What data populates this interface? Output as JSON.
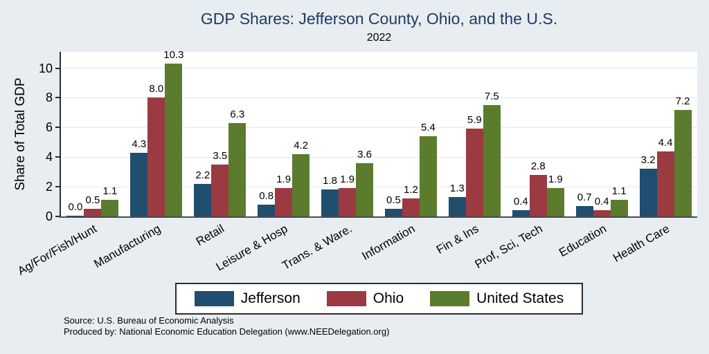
{
  "title": "GDP Shares: Jefferson County, Ohio, and the U.S.",
  "subtitle": "2022",
  "source_line1": "Source: U.S. Bureau of Economic Analysis",
  "source_line2": "Produced by: National Economic Education Delegation (www.NEEDelegation.org)",
  "colors": {
    "background": "#e7edf1",
    "plot_background": "#ffffff",
    "title": "#213a60",
    "gridline": "#dde9ef",
    "axis": "#2b2b2b",
    "jefferson_blue": "#1f4e6f",
    "ohio_red": "#9c3a42",
    "us_green": "#5a7c2c"
  },
  "chart_data": {
    "type": "bar",
    "title": "GDP Shares: Jefferson County, Ohio, and the U.S.",
    "subtitle": "2022",
    "xlabel": "",
    "ylabel": "Share of Total GDP",
    "categories": [
      "Ag/For/Fish/Hunt",
      "Manufacturing",
      "Retail",
      "Leisure & Hosp",
      "Trans. & Ware.",
      "Information",
      "Fin & Ins",
      "Prof, Sci, Tech",
      "Education",
      "Health Care"
    ],
    "series": [
      {
        "name": "Jefferson",
        "color": "#1f4e6f",
        "values": [
          0.0,
          4.3,
          2.2,
          0.8,
          1.8,
          0.5,
          1.3,
          0.4,
          0.7,
          3.2
        ]
      },
      {
        "name": "Ohio",
        "color": "#9c3a42",
        "values": [
          0.5,
          8.0,
          3.5,
          1.9,
          1.9,
          1.2,
          5.9,
          2.8,
          0.4,
          4.4
        ]
      },
      {
        "name": "United States",
        "color": "#5a7c2c",
        "values": [
          1.1,
          10.3,
          6.3,
          4.2,
          3.6,
          5.4,
          7.5,
          1.9,
          1.1,
          7.2
        ]
      }
    ],
    "yticks": [
      0,
      2,
      4,
      6,
      8,
      10
    ],
    "ylim": [
      0,
      11.1
    ],
    "grid": true,
    "value_labels": true,
    "value_label_format": "one_decimal",
    "legend_position": "bottom",
    "xlabel_rotation_deg": -30
  }
}
